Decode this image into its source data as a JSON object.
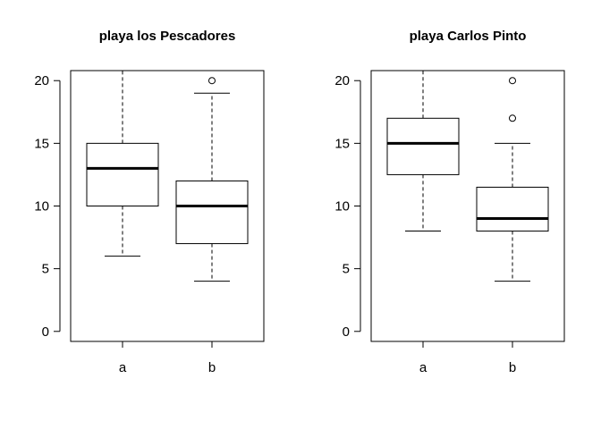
{
  "chart_data": [
    {
      "type": "box",
      "title": "playa los Pescadores",
      "categories": [
        "a",
        "b"
      ],
      "ylim": [
        -0.8,
        20.8
      ],
      "yticks": [
        0,
        5,
        10,
        15,
        20
      ],
      "grid": false,
      "boxes": [
        {
          "category": "a",
          "whisker_low": 6,
          "q1": 10,
          "median": 13,
          "q3": 15,
          "whisker_high": 21,
          "outliers": []
        },
        {
          "category": "b",
          "whisker_low": 4,
          "q1": 7,
          "median": 10,
          "q3": 12,
          "whisker_high": 19,
          "outliers": [
            20
          ]
        }
      ]
    },
    {
      "type": "box",
      "title": "playa Carlos Pinto",
      "categories": [
        "a",
        "b"
      ],
      "ylim": [
        -0.8,
        20.8
      ],
      "yticks": [
        0,
        5,
        10,
        15,
        20
      ],
      "grid": false,
      "boxes": [
        {
          "category": "a",
          "whisker_low": 8,
          "q1": 12.5,
          "median": 15,
          "q3": 17,
          "whisker_high": 21,
          "outliers": []
        },
        {
          "category": "b",
          "whisker_low": 4,
          "q1": 8,
          "median": 9,
          "q3": 11.5,
          "whisker_high": 15,
          "outliers": [
            17,
            20
          ]
        }
      ]
    }
  ]
}
